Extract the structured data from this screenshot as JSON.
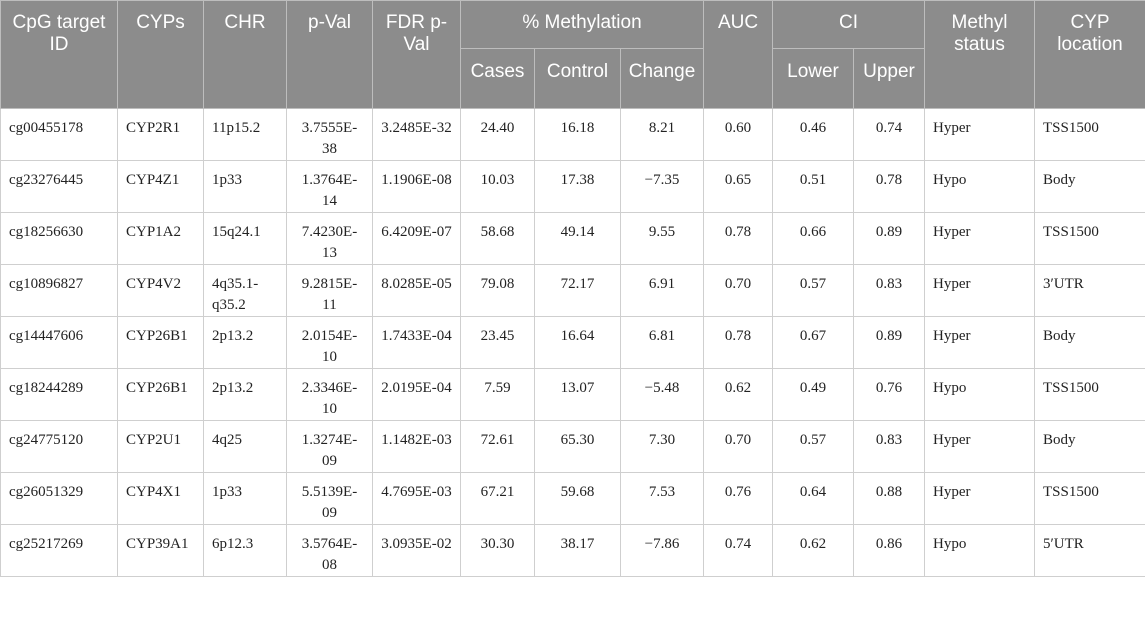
{
  "header": {
    "id": "CpG target ID",
    "cyps": "CYPs",
    "chr": "CHR",
    "pval": "p-Val",
    "fdr": "FDR p-Val",
    "methylation": "% Methylation",
    "cases": "Cases",
    "control": "Control",
    "change": "Change",
    "auc": "AUC",
    "ci": "CI",
    "lower": "Lower",
    "upper": "Upper",
    "status": "Methyl status",
    "location": "CYP location"
  },
  "rows": [
    [
      "cg00455178",
      "CYP2R1",
      "11p15.2",
      "3.7555E-38",
      "3.2485E-32",
      "24.40",
      "16.18",
      "8.21",
      "0.60",
      "0.46",
      "0.74",
      "Hyper",
      "TSS1500"
    ],
    [
      "cg23276445",
      "CYP4Z1",
      "1p33",
      "1.3764E-14",
      "1.1906E-08",
      "10.03",
      "17.38",
      "−7.35",
      "0.65",
      "0.51",
      "0.78",
      "Hypo",
      "Body"
    ],
    [
      "cg18256630",
      "CYP1A2",
      "15q24.1",
      "7.4230E-13",
      "6.4209E-07",
      "58.68",
      "49.14",
      "9.55",
      "0.78",
      "0.66",
      "0.89",
      "Hyper",
      "TSS1500"
    ],
    [
      "cg10896827",
      "CYP4V2",
      "4q35.1-q35.2",
      "9.2815E-11",
      "8.0285E-05",
      "79.08",
      "72.17",
      "6.91",
      "0.70",
      "0.57",
      "0.83",
      "Hyper",
      "3′UTR"
    ],
    [
      "cg14447606",
      "CYP26B1",
      "2p13.2",
      "2.0154E-10",
      "1.7433E-04",
      "23.45",
      "16.64",
      "6.81",
      "0.78",
      "0.67",
      "0.89",
      "Hyper",
      "Body"
    ],
    [
      "cg18244289",
      "CYP26B1",
      "2p13.2",
      "2.3346E-10",
      "2.0195E-04",
      "7.59",
      "13.07",
      "−5.48",
      "0.62",
      "0.49",
      "0.76",
      "Hypo",
      "TSS1500"
    ],
    [
      "cg24775120",
      "CYP2U1",
      "4q25",
      "1.3274E-09",
      "1.1482E-03",
      "72.61",
      "65.30",
      "7.30",
      "0.70",
      "0.57",
      "0.83",
      "Hyper",
      "Body"
    ],
    [
      "cg26051329",
      "CYP4X1",
      "1p33",
      "5.5139E-09",
      "4.7695E-03",
      "67.21",
      "59.68",
      "7.53",
      "0.76",
      "0.64",
      "0.88",
      "Hyper",
      "TSS1500"
    ],
    [
      "cg25217269",
      "CYP39A1",
      "6p12.3",
      "3.5764E-08",
      "3.0935E-02",
      "30.30",
      "38.17",
      "−7.86",
      "0.74",
      "0.62",
      "0.86",
      "Hypo",
      "5′UTR"
    ]
  ]
}
